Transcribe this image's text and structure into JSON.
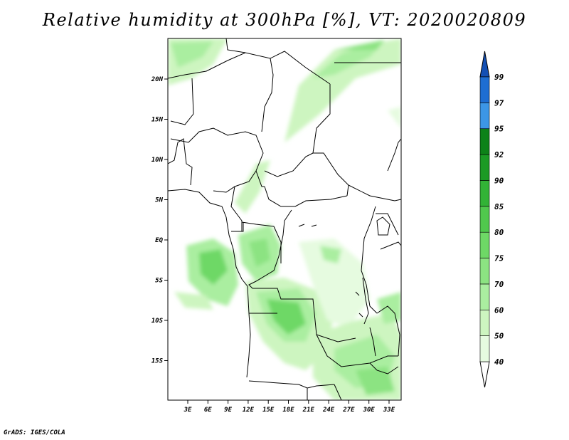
{
  "title": "Relative humidity at 300hPa [%], VT: 2020020809",
  "credit": "GrADS: IGES/COLA",
  "map": {
    "variable": "Relative humidity",
    "level": "300hPa",
    "unit": "%",
    "valid_time": "2020020809",
    "lon_ticks": [
      "3E",
      "6E",
      "9E",
      "12E",
      "15E",
      "18E",
      "21E",
      "24E",
      "27E",
      "30E",
      "33E"
    ],
    "lat_ticks": [
      "20N",
      "15N",
      "10N",
      "5N",
      "EQ",
      "5S",
      "10S",
      "15S"
    ]
  },
  "colorbar": {
    "levels": [
      "40",
      "50",
      "60",
      "70",
      "75",
      "80",
      "85",
      "90",
      "92",
      "95",
      "97",
      "99"
    ],
    "colors": [
      "#ffffff",
      "#e6fbe0",
      "#cdf5c0",
      "#aaeea0",
      "#8ce382",
      "#6ed866",
      "#50c84d",
      "#32b336",
      "#1b9a24",
      "#0d8218",
      "#3c96e6",
      "#1e6ed2",
      "#1450b4"
    ]
  }
}
